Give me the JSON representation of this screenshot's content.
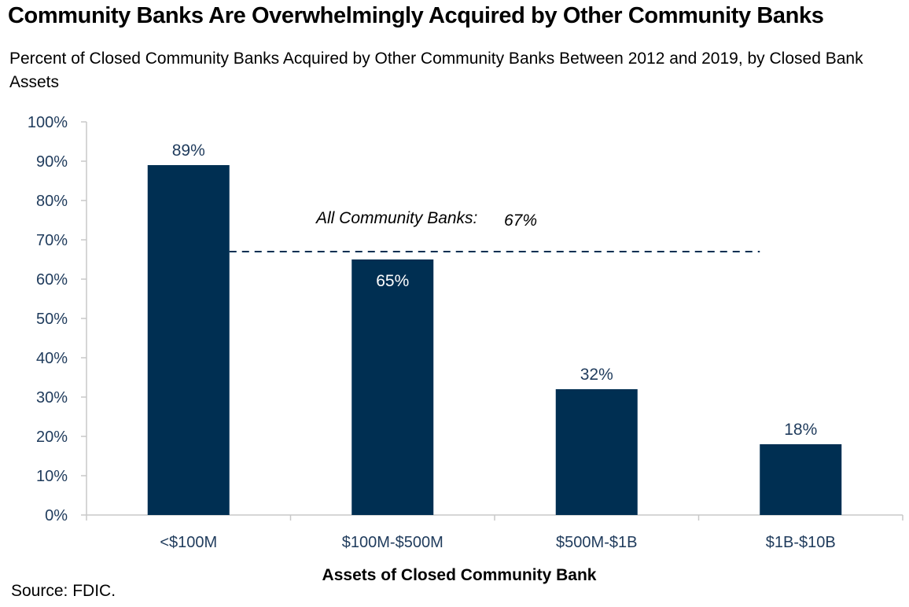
{
  "chart_data": {
    "type": "bar",
    "title": "Community Banks Are Overwhelmingly Acquired by Other Community Banks",
    "subtitle": "Percent of Closed Community Banks Acquired by Other Community Banks Between 2012 and 2019, by Closed Bank Assets",
    "xlabel": "Assets of Closed Community Bank",
    "ylabel": "",
    "categories": [
      "<$100M",
      "$100M-$500M",
      "$500M-$1B",
      "$1B-$10B"
    ],
    "values": [
      89,
      65,
      32,
      18
    ],
    "value_labels": [
      "89%",
      "65%",
      "32%",
      "18%"
    ],
    "ylim": [
      0,
      100
    ],
    "yticks": [
      0,
      10,
      20,
      30,
      40,
      50,
      60,
      70,
      80,
      90,
      100
    ],
    "ytick_labels": [
      "0%",
      "10%",
      "20%",
      "30%",
      "40%",
      "50%",
      "60%",
      "70%",
      "80%",
      "90%",
      "100%"
    ],
    "reference_line": {
      "value": 67,
      "label": "All Community Banks:",
      "value_label": "67%",
      "style": "dashed"
    },
    "grid": false,
    "legend": "none",
    "bar_color": "#002f52",
    "source": "Source: FDIC."
  }
}
